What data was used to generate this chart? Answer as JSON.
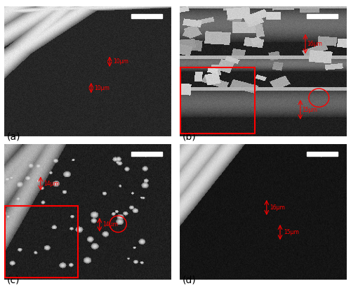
{
  "figure_size": [
    5.0,
    4.07
  ],
  "dpi": 100,
  "panels": [
    "(a)",
    "(b)",
    "(c)",
    "(d)"
  ],
  "panel_label_color": "black",
  "panel_label_fontsize": 10,
  "annotation_color": "red",
  "annotation_fontsize": 5.5,
  "background_color": "white",
  "border_color": "white",
  "border_width": 1.5,
  "scalebar_color": "white",
  "inset_color": "red",
  "circle_color": "red"
}
